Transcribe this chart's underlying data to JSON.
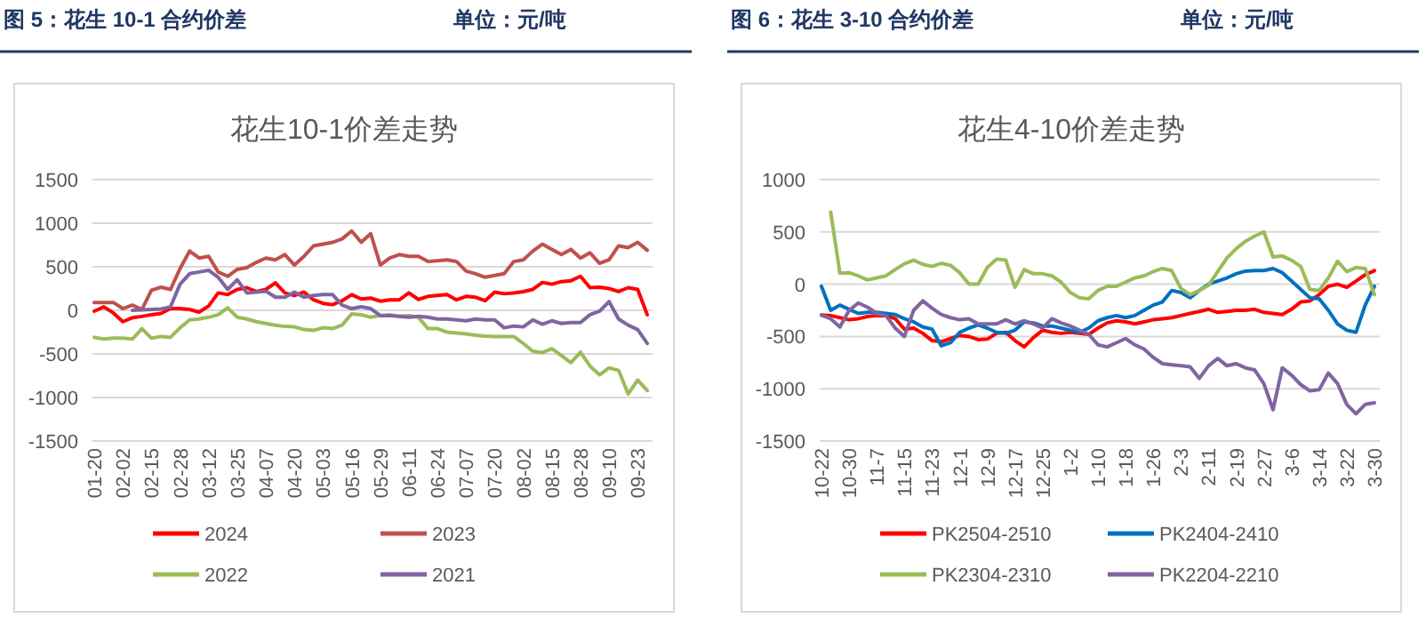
{
  "chart_data": [
    {
      "type": "line",
      "title": "花生10-1价差走势",
      "annotations": [
        "图 5：花生 10-1 合约价差",
        "单位：元/吨"
      ],
      "categories": [
        "01-20",
        null,
        null,
        "02-02",
        null,
        null,
        "02-15",
        null,
        null,
        "02-28",
        null,
        null,
        "03-12",
        null,
        null,
        "03-25",
        null,
        null,
        "04-07",
        null,
        null,
        "04-20",
        null,
        null,
        "05-03",
        null,
        null,
        "05-16",
        null,
        null,
        "05-29",
        null,
        null,
        "06-11",
        null,
        null,
        "06-24",
        null,
        null,
        "07-07",
        null,
        null,
        "07-20",
        null,
        null,
        "08-02",
        null,
        null,
        "08-15",
        null,
        null,
        "08-28",
        null,
        null,
        "09-10",
        null,
        null,
        "09-23",
        null
      ],
      "ylim": [
        -1500,
        1500
      ],
      "yticks": [
        -1500,
        -1000,
        -500,
        0,
        500,
        1000,
        1500
      ],
      "grid": "y",
      "legend": "bottom",
      "marker": "none",
      "line_style": "solid",
      "series": [
        {
          "name": "2024",
          "color": "#ff0000",
          "values": [
            -10,
            40,
            -30,
            -130,
            -85,
            -70,
            -50,
            -35,
            20,
            20,
            10,
            -20,
            50,
            200,
            180,
            240,
            260,
            215,
            240,
            315,
            200,
            170,
            210,
            120,
            80,
            65,
            110,
            180,
            130,
            140,
            105,
            120,
            120,
            200,
            125,
            160,
            170,
            180,
            120,
            160,
            150,
            110,
            210,
            190,
            200,
            215,
            240,
            320,
            300,
            330,
            340,
            390,
            260,
            265,
            250,
            215,
            260,
            240,
            -50
          ]
        },
        {
          "name": "2023",
          "color": "#c0504d",
          "values": [
            90,
            90,
            90,
            20,
            60,
            10,
            230,
            265,
            240,
            480,
            680,
            600,
            620,
            440,
            390,
            470,
            490,
            550,
            600,
            580,
            640,
            520,
            620,
            740,
            760,
            780,
            820,
            910,
            780,
            880,
            520,
            600,
            640,
            620,
            620,
            560,
            570,
            580,
            560,
            450,
            420,
            380,
            400,
            420,
            560,
            580,
            680,
            760,
            700,
            640,
            700,
            600,
            660,
            540,
            580,
            740,
            720,
            780,
            690
          ]
        },
        {
          "name": "2022",
          "color": "#9bbb59",
          "values": [
            -310,
            -330,
            -320,
            -320,
            -330,
            -210,
            -320,
            -300,
            -310,
            -200,
            -110,
            -100,
            -80,
            -50,
            30,
            -80,
            -100,
            -130,
            -150,
            -170,
            -185,
            -190,
            -220,
            -230,
            -200,
            -210,
            -170,
            -40,
            -50,
            -80,
            -60,
            -50,
            -70,
            -60,
            -80,
            -210,
            -210,
            -250,
            -260,
            -270,
            -285,
            -295,
            -300,
            -300,
            -300,
            -380,
            -470,
            -485,
            -440,
            -520,
            -600,
            -480,
            -640,
            -740,
            -660,
            -690,
            -960,
            -800,
            -920
          ]
        },
        {
          "name": "2021",
          "color": "#8064a2",
          "values": [
            null,
            null,
            null,
            null,
            0,
            5,
            10,
            15,
            40,
            300,
            420,
            440,
            460,
            380,
            240,
            350,
            200,
            210,
            220,
            150,
            150,
            210,
            150,
            170,
            180,
            180,
            60,
            20,
            40,
            20,
            -60,
            -60,
            -70,
            -80,
            -70,
            -80,
            -100,
            -100,
            -110,
            -120,
            -100,
            -110,
            -110,
            -200,
            -180,
            -190,
            -110,
            -160,
            -120,
            -150,
            -140,
            -140,
            -50,
            -10,
            100,
            -100,
            -170,
            -220,
            -380
          ]
        }
      ]
    },
    {
      "type": "line",
      "title": "花生4-10价差走势",
      "annotations": [
        "图 6：花生 3-10 合约价差",
        "单位：元/吨"
      ],
      "categories": [
        "10-22",
        null,
        null,
        "10-30",
        null,
        null,
        "11-7",
        null,
        null,
        "11-15",
        null,
        null,
        "11-23",
        null,
        null,
        "12-1",
        null,
        null,
        "12-9",
        null,
        null,
        "12-17",
        null,
        null,
        "12-25",
        null,
        null,
        "1-2",
        null,
        null,
        "1-10",
        null,
        null,
        "1-18",
        null,
        null,
        "1-26",
        null,
        null,
        "2-3",
        null,
        null,
        "2-11",
        null,
        null,
        "2-19",
        null,
        null,
        "2-27",
        null,
        null,
        "3-6",
        null,
        null,
        "3-14",
        null,
        null,
        "3-22",
        null,
        null,
        "3-30"
      ],
      "ylim": [
        -1500,
        1000
      ],
      "yticks": [
        -1500,
        -1000,
        -500,
        0,
        500,
        1000
      ],
      "grid": "y",
      "legend": "bottom",
      "marker": "none",
      "line_style": "solid",
      "series": [
        {
          "name": "PK2504-2510",
          "color": "#ff0000",
          "values": [
            -295,
            -300,
            -320,
            -340,
            -330,
            -310,
            -300,
            -300,
            -330,
            -430,
            -420,
            -470,
            -540,
            -550,
            -520,
            -490,
            -500,
            -530,
            -525,
            -470,
            -460,
            -540,
            -600,
            -510,
            -440,
            -460,
            -470,
            -460,
            -470,
            -480,
            -420,
            -370,
            -350,
            -360,
            -380,
            -360,
            -340,
            -330,
            -320,
            -300,
            -280,
            -260,
            -240,
            -270,
            -260,
            -250,
            -250,
            -240,
            -270,
            -280,
            -290,
            -240,
            -170,
            -160,
            -100,
            -20,
            0,
            -30,
            30,
            90,
            130
          ]
        },
        {
          "name": "PK2404-2410",
          "color": "#0070c0",
          "values": [
            -20,
            -250,
            -200,
            -240,
            -280,
            -270,
            -270,
            -280,
            -290,
            -330,
            -360,
            -410,
            -430,
            -590,
            -560,
            -460,
            -420,
            -390,
            -420,
            -460,
            -470,
            -440,
            -360,
            -370,
            -400,
            -400,
            -420,
            -440,
            -460,
            -420,
            -350,
            -320,
            -300,
            -320,
            -300,
            -250,
            -200,
            -170,
            -60,
            -80,
            -130,
            -60,
            0,
            30,
            60,
            100,
            125,
            130,
            130,
            150,
            110,
            30,
            -50,
            -130,
            -140,
            -250,
            -380,
            -440,
            -460,
            -200,
            -20
          ]
        },
        {
          "name": "PK2304-2310",
          "color": "#9bbb59",
          "values": [
            null,
            690,
            105,
            110,
            80,
            40,
            60,
            80,
            140,
            195,
            230,
            190,
            170,
            200,
            180,
            110,
            0,
            0,
            160,
            240,
            230,
            -30,
            140,
            100,
            100,
            80,
            20,
            -80,
            -130,
            -140,
            -60,
            -20,
            -20,
            20,
            60,
            80,
            120,
            150,
            130,
            -40,
            -100,
            -60,
            -10,
            120,
            250,
            340,
            410,
            460,
            500,
            260,
            270,
            230,
            170,
            -50,
            -60,
            60,
            220,
            120,
            160,
            150,
            -100
          ]
        },
        {
          "name": "PK2204-2210",
          "color": "#8064a2",
          "values": [
            -295,
            -330,
            -410,
            -250,
            -180,
            -220,
            -280,
            -300,
            -420,
            -500,
            -250,
            -160,
            -230,
            -290,
            -320,
            -340,
            -330,
            -380,
            -380,
            -380,
            -340,
            -380,
            -350,
            -380,
            -420,
            -330,
            -370,
            -400,
            -440,
            -480,
            -580,
            -600,
            -560,
            -520,
            -580,
            -620,
            -700,
            -760,
            -770,
            -780,
            -790,
            -900,
            -780,
            -710,
            -780,
            -760,
            -800,
            -820,
            -950,
            -1200,
            -800,
            -870,
            -960,
            -1020,
            -1010,
            -850,
            -950,
            -1150,
            -1240,
            -1150,
            -1135
          ]
        }
      ]
    }
  ]
}
